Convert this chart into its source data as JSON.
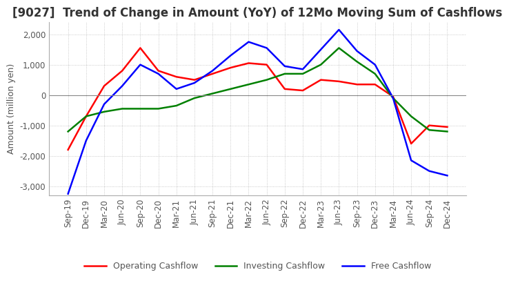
{
  "title": "[9027]  Trend of Change in Amount (YoY) of 12Mo Moving Sum of Cashflows",
  "ylabel": "Amount (million yen)",
  "title_fontsize": 12,
  "label_fontsize": 9,
  "tick_fontsize": 8.5,
  "ylim": [
    -3300,
    2400
  ],
  "yticks": [
    -3000,
    -2000,
    -1000,
    0,
    1000,
    2000
  ],
  "x_labels": [
    "Sep-19",
    "Dec-19",
    "Mar-20",
    "Jun-20",
    "Sep-20",
    "Dec-20",
    "Mar-21",
    "Jun-21",
    "Sep-21",
    "Dec-21",
    "Mar-22",
    "Jun-22",
    "Sep-22",
    "Dec-22",
    "Mar-23",
    "Jun-23",
    "Sep-23",
    "Dec-23",
    "Mar-24",
    "Jun-24",
    "Sep-24",
    "Dec-24"
  ],
  "operating": [
    -1800,
    -700,
    300,
    800,
    1550,
    800,
    600,
    500,
    700,
    900,
    1050,
    1000,
    200,
    150,
    500,
    450,
    350,
    350,
    -50,
    -1600,
    -1000,
    -1050
  ],
  "investing": [
    -1200,
    -700,
    -550,
    -450,
    -450,
    -450,
    -350,
    -100,
    50,
    200,
    350,
    500,
    700,
    700,
    1000,
    1550,
    1100,
    700,
    -100,
    -700,
    -1150,
    -1200
  ],
  "free": [
    -3250,
    -1500,
    -300,
    300,
    1000,
    700,
    200,
    400,
    800,
    1300,
    1750,
    1550,
    950,
    850,
    1500,
    2150,
    1450,
    1000,
    -100,
    -2150,
    -2500,
    -2650
  ],
  "op_color": "#ff0000",
  "inv_color": "#008000",
  "free_color": "#0000ff",
  "bg_color": "#ffffff",
  "grid_color": "#aaaaaa"
}
